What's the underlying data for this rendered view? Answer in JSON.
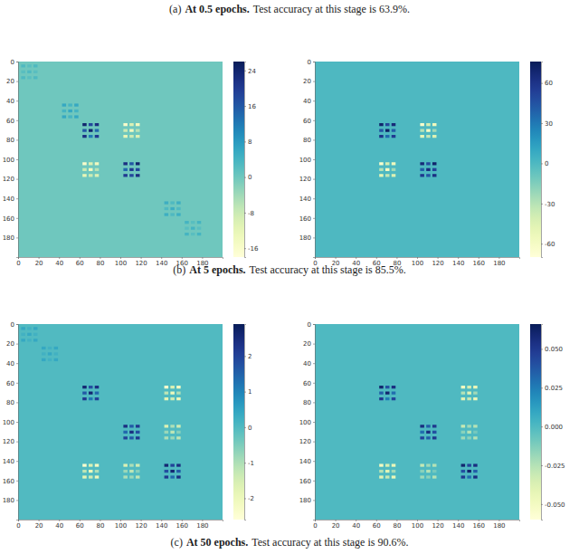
{
  "captions": [
    {
      "label": "(a)",
      "title": "At 0.5 epochs.",
      "text": "Test accuracy at this stage is 63.9%."
    },
    {
      "label": "(b)",
      "title": "At 5 epochs.",
      "text": "Test accuracy at this stage is 85.5%."
    },
    {
      "label": "(c)",
      "title": "At 50 epochs.",
      "text": "Test accuracy at this stage is 90.6%."
    }
  ],
  "chart_data": [
    {
      "type": "heatmap",
      "xlim": [
        0,
        200
      ],
      "ylim": [
        0,
        200
      ],
      "xticks": [
        0,
        20,
        40,
        60,
        80,
        100,
        120,
        140,
        160,
        180
      ],
      "yticks": [
        0,
        20,
        40,
        60,
        80,
        100,
        120,
        140,
        160,
        180
      ],
      "fill_value": 0,
      "colorbar": {
        "range": [
          -18,
          26
        ],
        "ticks": [
          -16,
          -8,
          0,
          8,
          16,
          24
        ]
      },
      "cells": [
        [
          3,
          3,
          3
        ],
        [
          9,
          3,
          2
        ],
        [
          15,
          3,
          3
        ],
        [
          3,
          9,
          2
        ],
        [
          9,
          9,
          3
        ],
        [
          15,
          9,
          2
        ],
        [
          3,
          15,
          3
        ],
        [
          9,
          15,
          2
        ],
        [
          15,
          15,
          3
        ],
        [
          43,
          43,
          6
        ],
        [
          49,
          43,
          4
        ],
        [
          55,
          43,
          6
        ],
        [
          43,
          49,
          4
        ],
        [
          49,
          49,
          6
        ],
        [
          55,
          49,
          4
        ],
        [
          43,
          55,
          6
        ],
        [
          49,
          55,
          4
        ],
        [
          55,
          55,
          6
        ],
        [
          63,
          63,
          24
        ],
        [
          69,
          63,
          18
        ],
        [
          75,
          63,
          22
        ],
        [
          63,
          69,
          16
        ],
        [
          69,
          69,
          24
        ],
        [
          75,
          69,
          14
        ],
        [
          63,
          75,
          22
        ],
        [
          69,
          75,
          12
        ],
        [
          75,
          75,
          20
        ],
        [
          103,
          103,
          22
        ],
        [
          109,
          103,
          16
        ],
        [
          115,
          103,
          24
        ],
        [
          103,
          109,
          14
        ],
        [
          109,
          109,
          20
        ],
        [
          115,
          109,
          18
        ],
        [
          103,
          115,
          20
        ],
        [
          109,
          115,
          18
        ],
        [
          115,
          115,
          22
        ],
        [
          63,
          103,
          -16
        ],
        [
          69,
          103,
          -10
        ],
        [
          75,
          103,
          -14
        ],
        [
          63,
          109,
          -8
        ],
        [
          69,
          109,
          -14
        ],
        [
          75,
          109,
          -6
        ],
        [
          63,
          115,
          -12
        ],
        [
          69,
          115,
          -8
        ],
        [
          75,
          115,
          -10
        ],
        [
          103,
          63,
          -16
        ],
        [
          109,
          63,
          -10
        ],
        [
          115,
          63,
          -14
        ],
        [
          103,
          69,
          -8
        ],
        [
          109,
          69,
          -14
        ],
        [
          115,
          69,
          -6
        ],
        [
          103,
          75,
          -12
        ],
        [
          109,
          75,
          -8
        ],
        [
          115,
          75,
          -10
        ],
        [
          143,
          143,
          5
        ],
        [
          149,
          143,
          3
        ],
        [
          155,
          143,
          5
        ],
        [
          143,
          149,
          3
        ],
        [
          149,
          149,
          5
        ],
        [
          155,
          149,
          3
        ],
        [
          143,
          155,
          5
        ],
        [
          149,
          155,
          3
        ],
        [
          155,
          155,
          5
        ],
        [
          163,
          163,
          4
        ],
        [
          169,
          163,
          2
        ],
        [
          175,
          163,
          4
        ],
        [
          163,
          169,
          2
        ],
        [
          169,
          169,
          4
        ],
        [
          175,
          169,
          2
        ],
        [
          163,
          175,
          4
        ],
        [
          169,
          175,
          2
        ],
        [
          175,
          175,
          4
        ]
      ]
    },
    {
      "type": "heatmap",
      "xlim": [
        0,
        200
      ],
      "ylim": [
        0,
        200
      ],
      "xticks": [
        0,
        20,
        40,
        60,
        80,
        100,
        120,
        140,
        160,
        180
      ],
      "yticks": [
        0,
        20,
        40,
        60,
        80,
        100,
        120,
        140,
        160,
        180
      ],
      "fill_value": 0,
      "colorbar": {
        "range": [
          -70,
          76
        ],
        "ticks": [
          -60,
          -30,
          0,
          30,
          60
        ]
      },
      "cells": [
        [
          63,
          63,
          70
        ],
        [
          69,
          63,
          50
        ],
        [
          75,
          63,
          66
        ],
        [
          63,
          69,
          44
        ],
        [
          69,
          69,
          72
        ],
        [
          75,
          69,
          40
        ],
        [
          63,
          75,
          60
        ],
        [
          69,
          75,
          36
        ],
        [
          75,
          75,
          56
        ],
        [
          103,
          103,
          66
        ],
        [
          109,
          103,
          48
        ],
        [
          115,
          103,
          70
        ],
        [
          103,
          109,
          40
        ],
        [
          109,
          109,
          64
        ],
        [
          115,
          109,
          52
        ],
        [
          103,
          115,
          58
        ],
        [
          109,
          115,
          44
        ],
        [
          115,
          115,
          62
        ],
        [
          63,
          103,
          -64
        ],
        [
          69,
          103,
          -40
        ],
        [
          75,
          103,
          -56
        ],
        [
          63,
          109,
          -30
        ],
        [
          69,
          109,
          -60
        ],
        [
          75,
          109,
          -24
        ],
        [
          63,
          115,
          -50
        ],
        [
          69,
          115,
          -34
        ],
        [
          75,
          115,
          -44
        ],
        [
          103,
          63,
          -64
        ],
        [
          109,
          63,
          -40
        ],
        [
          115,
          63,
          -56
        ],
        [
          103,
          69,
          -30
        ],
        [
          109,
          69,
          -60
        ],
        [
          115,
          69,
          -24
        ],
        [
          103,
          75,
          -50
        ],
        [
          109,
          75,
          -34
        ],
        [
          115,
          75,
          -44
        ]
      ]
    },
    {
      "type": "heatmap",
      "xlim": [
        0,
        200
      ],
      "ylim": [
        0,
        200
      ],
      "xticks": [
        0,
        20,
        40,
        60,
        80,
        100,
        120,
        140,
        160,
        180
      ],
      "yticks": [
        0,
        20,
        40,
        60,
        80,
        100,
        120,
        140,
        160,
        180
      ],
      "fill_value": 0,
      "colorbar": {
        "range": [
          -2.6,
          2.9
        ],
        "ticks": [
          -2,
          -1,
          0,
          1,
          2
        ]
      },
      "cells": [
        [
          3,
          3,
          0.4
        ],
        [
          9,
          3,
          0.2
        ],
        [
          15,
          3,
          0.4
        ],
        [
          3,
          9,
          0.2
        ],
        [
          9,
          9,
          0.4
        ],
        [
          15,
          9,
          0.2
        ],
        [
          3,
          15,
          0.4
        ],
        [
          9,
          15,
          0.2
        ],
        [
          15,
          15,
          0.4
        ],
        [
          23,
          23,
          0.4
        ],
        [
          29,
          23,
          0.2
        ],
        [
          35,
          23,
          0.4
        ],
        [
          23,
          29,
          0.2
        ],
        [
          29,
          29,
          0.4
        ],
        [
          35,
          29,
          0.2
        ],
        [
          23,
          35,
          0.4
        ],
        [
          29,
          35,
          0.2
        ],
        [
          35,
          35,
          0.4
        ],
        [
          63,
          63,
          2.6
        ],
        [
          69,
          63,
          1.8
        ],
        [
          75,
          63,
          2.4
        ],
        [
          63,
          69,
          1.6
        ],
        [
          69,
          69,
          2.6
        ],
        [
          75,
          69,
          1.4
        ],
        [
          63,
          75,
          2.2
        ],
        [
          69,
          75,
          1.2
        ],
        [
          75,
          75,
          2.0
        ],
        [
          103,
          103,
          2.4
        ],
        [
          109,
          103,
          1.6
        ],
        [
          115,
          103,
          2.2
        ],
        [
          103,
          109,
          1.4
        ],
        [
          109,
          109,
          2.4
        ],
        [
          115,
          109,
          1.8
        ],
        [
          103,
          115,
          2.0
        ],
        [
          109,
          115,
          1.6
        ],
        [
          115,
          115,
          2.2
        ],
        [
          143,
          143,
          2.6
        ],
        [
          149,
          143,
          2.0
        ],
        [
          155,
          143,
          2.4
        ],
        [
          143,
          149,
          1.8
        ],
        [
          149,
          149,
          2.6
        ],
        [
          155,
          149,
          1.6
        ],
        [
          143,
          155,
          2.2
        ],
        [
          149,
          155,
          1.4
        ],
        [
          155,
          155,
          2.4
        ],
        [
          63,
          143,
          -2.4
        ],
        [
          69,
          143,
          -1.6
        ],
        [
          75,
          143,
          -2.2
        ],
        [
          63,
          149,
          -1.2
        ],
        [
          69,
          149,
          -2.0
        ],
        [
          75,
          149,
          -1.0
        ],
        [
          63,
          155,
          -1.8
        ],
        [
          69,
          155,
          -1.4
        ],
        [
          75,
          155,
          -2.0
        ],
        [
          143,
          63,
          -2.4
        ],
        [
          149,
          63,
          -1.6
        ],
        [
          155,
          63,
          -2.2
        ],
        [
          143,
          69,
          -1.2
        ],
        [
          149,
          69,
          -2.0
        ],
        [
          155,
          69,
          -1.0
        ],
        [
          143,
          75,
          -1.8
        ],
        [
          149,
          75,
          -1.4
        ],
        [
          155,
          75,
          -2.0
        ],
        [
          103,
          143,
          -1.6
        ],
        [
          109,
          143,
          -1.0
        ],
        [
          115,
          143,
          -1.4
        ],
        [
          103,
          149,
          -0.8
        ],
        [
          109,
          149,
          -1.2
        ],
        [
          115,
          149,
          -0.6
        ],
        [
          103,
          155,
          -1.0
        ],
        [
          109,
          155,
          -0.8
        ],
        [
          115,
          155,
          -1.2
        ],
        [
          143,
          103,
          -1.6
        ],
        [
          149,
          103,
          -1.0
        ],
        [
          155,
          103,
          -1.4
        ],
        [
          143,
          109,
          -0.8
        ],
        [
          149,
          109,
          -1.2
        ],
        [
          155,
          109,
          -0.6
        ],
        [
          143,
          115,
          -1.0
        ],
        [
          149,
          115,
          -0.8
        ],
        [
          155,
          115,
          -1.2
        ]
      ]
    },
    {
      "type": "heatmap",
      "xlim": [
        0,
        200
      ],
      "ylim": [
        0,
        200
      ],
      "xticks": [
        0,
        20,
        40,
        60,
        80,
        100,
        120,
        140,
        160,
        180
      ],
      "yticks": [
        0,
        20,
        40,
        60,
        80,
        100,
        120,
        140,
        160,
        180
      ],
      "fill_value": 0,
      "colorbar": {
        "range": [
          -0.06,
          0.066
        ],
        "ticks": [
          {
            "value": -0.05,
            "label": "-0.050"
          },
          -0.025,
          {
            "value": 0,
            "label": "0.000"
          },
          0.025,
          {
            "value": 0.05,
            "label": "0.050"
          }
        ]
      },
      "cells": [
        [
          63,
          63,
          0.06
        ],
        [
          69,
          63,
          0.04
        ],
        [
          75,
          63,
          0.055
        ],
        [
          63,
          69,
          0.035
        ],
        [
          69,
          69,
          0.06
        ],
        [
          75,
          69,
          0.03
        ],
        [
          63,
          75,
          0.05
        ],
        [
          69,
          75,
          0.025
        ],
        [
          75,
          75,
          0.045
        ],
        [
          103,
          103,
          0.055
        ],
        [
          109,
          103,
          0.035
        ],
        [
          115,
          103,
          0.05
        ],
        [
          103,
          109,
          0.03
        ],
        [
          109,
          109,
          0.055
        ],
        [
          115,
          109,
          0.04
        ],
        [
          103,
          115,
          0.045
        ],
        [
          109,
          115,
          0.035
        ],
        [
          115,
          115,
          0.05
        ],
        [
          143,
          143,
          0.06
        ],
        [
          149,
          143,
          0.045
        ],
        [
          155,
          143,
          0.055
        ],
        [
          143,
          149,
          0.04
        ],
        [
          149,
          149,
          0.06
        ],
        [
          155,
          149,
          0.035
        ],
        [
          143,
          155,
          0.05
        ],
        [
          149,
          155,
          0.03
        ],
        [
          155,
          155,
          0.055
        ],
        [
          63,
          143,
          -0.05
        ],
        [
          69,
          143,
          -0.035
        ],
        [
          75,
          143,
          -0.045
        ],
        [
          63,
          149,
          -0.025
        ],
        [
          69,
          149,
          -0.04
        ],
        [
          75,
          149,
          -0.02
        ],
        [
          63,
          155,
          -0.04
        ],
        [
          69,
          155,
          -0.03
        ],
        [
          75,
          155,
          -0.045
        ],
        [
          143,
          63,
          -0.05
        ],
        [
          149,
          63,
          -0.035
        ],
        [
          155,
          63,
          -0.045
        ],
        [
          143,
          69,
          -0.025
        ],
        [
          149,
          69,
          -0.04
        ],
        [
          155,
          69,
          -0.02
        ],
        [
          143,
          75,
          -0.04
        ],
        [
          149,
          75,
          -0.03
        ],
        [
          155,
          75,
          -0.045
        ],
        [
          103,
          143,
          -0.03
        ],
        [
          109,
          143,
          -0.02
        ],
        [
          115,
          143,
          -0.025
        ],
        [
          103,
          149,
          -0.015
        ],
        [
          109,
          149,
          -0.025
        ],
        [
          115,
          149,
          -0.01
        ],
        [
          103,
          155,
          -0.02
        ],
        [
          109,
          155,
          -0.015
        ],
        [
          115,
          155,
          -0.025
        ],
        [
          143,
          103,
          -0.03
        ],
        [
          149,
          103,
          -0.02
        ],
        [
          155,
          103,
          -0.025
        ],
        [
          143,
          109,
          -0.015
        ],
        [
          149,
          109,
          -0.025
        ],
        [
          155,
          109,
          -0.01
        ],
        [
          143,
          115,
          -0.02
        ],
        [
          149,
          115,
          -0.015
        ],
        [
          155,
          115,
          -0.025
        ]
      ]
    }
  ]
}
